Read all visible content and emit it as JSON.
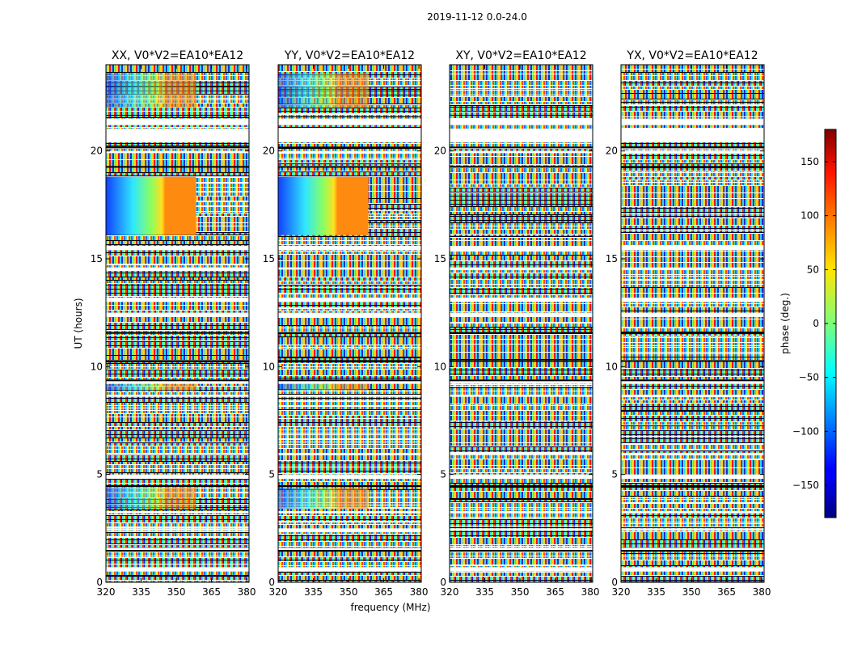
{
  "chart_data": {
    "type": "heatmap",
    "suptitle": "2019-11-12 0.0-24.0",
    "xlabel": "frequency (MHz)",
    "ylabel": "UT (hours)",
    "xlim": [
      320,
      381
    ],
    "ylim": [
      0,
      24
    ],
    "x_ticks": [
      320,
      335,
      350,
      365,
      380
    ],
    "y_ticks": [
      0,
      5,
      10,
      15,
      20
    ],
    "panels": [
      {
        "title": "XX, V0*V2=EA10*EA12",
        "pol": "XX"
      },
      {
        "title": "YY, V0*V2=EA10*EA12",
        "pol": "YY"
      },
      {
        "title": "XY, V0*V2=EA10*EA12",
        "pol": "XY"
      },
      {
        "title": "YX, V0*V2=EA10*EA12",
        "pol": "YX"
      }
    ],
    "colorbar": {
      "label": "phase (deg.)",
      "range": [
        -180,
        180
      ],
      "ticks": [
        -150,
        -100,
        -50,
        0,
        50,
        100,
        150
      ],
      "colormap": "jet"
    },
    "flagged_hours": [
      [
        0.5,
        0.7
      ],
      [
        1.5,
        1.6
      ],
      [
        2.4,
        2.5
      ],
      [
        3.2,
        3.3
      ],
      [
        4.8,
        5.0
      ],
      [
        5.9,
        6.0
      ],
      [
        8.6,
        8.7
      ],
      [
        9.2,
        9.4
      ],
      [
        12.3,
        12.5
      ],
      [
        13.0,
        13.2
      ],
      [
        14.5,
        14.6
      ],
      [
        15.4,
        15.6
      ],
      [
        19.9,
        20.0
      ],
      [
        20.4,
        21.0
      ],
      [
        21.2,
        21.5
      ]
    ]
  }
}
